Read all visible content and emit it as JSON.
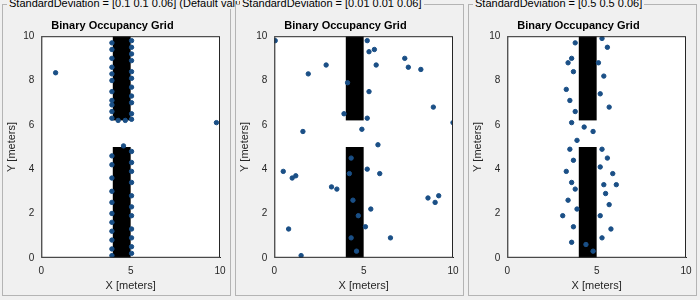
{
  "chart_data": [
    {
      "type": "scatter",
      "panel_title": "StandardDeviation = [0.1 0.1 0.06] (Default valu",
      "title": "Binary Occupancy Grid",
      "x_label": "X [meters]",
      "y_label": "Y [meters]",
      "xlim": [
        0,
        10
      ],
      "ylim": [
        0,
        10
      ],
      "xticks": [
        0,
        5,
        10
      ],
      "yticks": [
        0,
        2,
        4,
        6,
        8,
        10
      ],
      "grid": false,
      "color": "#1a4f86",
      "obstacles": [
        {
          "x": [
            4,
            5
          ],
          "y": [
            0,
            5
          ]
        },
        {
          "x": [
            4,
            5
          ],
          "y": [
            6.2,
            10
          ]
        }
      ],
      "x": [
        0.8,
        9.8,
        3.95,
        3.95,
        3.95,
        3.95,
        3.95,
        3.95,
        3.95,
        3.95,
        3.95,
        3.95,
        3.95,
        5.05,
        5.05,
        5.05,
        5.05,
        5.05,
        5.05,
        5.05,
        5.05,
        5.05,
        5.05,
        5.05,
        4.3,
        4.7,
        3.95,
        3.95,
        3.95,
        3.95,
        3.95,
        3.95,
        3.95,
        3.95,
        3.95,
        3.95,
        3.95,
        5.05,
        5.05,
        5.05,
        5.05,
        5.05,
        5.05,
        5.05,
        5.05,
        5.05,
        5.05,
        5.05,
        4.6
      ],
      "y": [
        8.35,
        6.1,
        9.7,
        9.4,
        9.0,
        8.6,
        8.3,
        8.0,
        7.5,
        7.1,
        6.9,
        6.6,
        6.3,
        9.8,
        9.5,
        9.2,
        8.9,
        8.4,
        8.1,
        7.7,
        7.3,
        7.0,
        6.5,
        6.25,
        6.2,
        6.2,
        4.6,
        4.2,
        3.6,
        3.0,
        2.5,
        2.0,
        1.6,
        1.2,
        0.8,
        0.4,
        0.1,
        4.8,
        4.3,
        3.9,
        3.4,
        2.8,
        2.3,
        1.9,
        1.3,
        0.9,
        0.5,
        0.2,
        5.05
      ]
    },
    {
      "type": "scatter",
      "panel_title": "StandardDeviation = [0.01 0.01 0.06]",
      "title": "Binary Occupancy Grid",
      "x_label": "X [meters]",
      "y_label": "Y [meters]",
      "xlim": [
        0,
        10
      ],
      "ylim": [
        0,
        10
      ],
      "xticks": [
        0,
        5,
        10
      ],
      "yticks": [
        0,
        2,
        4,
        6,
        8,
        10
      ],
      "grid": false,
      "color": "#1a4f86",
      "obstacles": [
        {
          "x": [
            4,
            5
          ],
          "y": [
            0,
            5
          ]
        },
        {
          "x": [
            4,
            5
          ],
          "y": [
            6.2,
            10
          ]
        }
      ],
      "x": [
        0.05,
        0.5,
        0.8,
        1.0,
        1.2,
        1.5,
        1.6,
        1.9,
        2.9,
        3.2,
        3.5,
        3.9,
        5.2,
        5.3,
        5.6,
        5.7,
        5.3,
        5.2,
        4.9,
        4.3,
        4.2,
        4.4,
        4.7,
        5.4,
        5.1,
        4.3,
        5.2,
        5.9,
        5.8,
        6.5,
        7.3,
        7.5,
        8.2,
        8.6,
        8.9,
        9.0,
        9.2,
        10.0,
        4.6,
        4.1
      ],
      "y": [
        9.8,
        3.9,
        1.3,
        3.6,
        3.7,
        0.1,
        5.7,
        8.3,
        8.7,
        3.2,
        3.1,
        6.5,
        9.8,
        9.3,
        9.4,
        8.7,
        7.5,
        6.3,
        5.8,
        4.5,
        3.8,
        2.6,
        1.9,
        2.2,
        1.4,
        0.9,
        4.0,
        3.8,
        5.1,
        0.9,
        9.0,
        8.6,
        8.5,
        2.7,
        6.8,
        2.5,
        2.8,
        6.1,
        0.3,
        7.9
      ]
    },
    {
      "type": "scatter",
      "panel_title": "StandardDeviation = [0.5 0.5 0.06]",
      "title": "Binary Occupancy Grid",
      "x_label": "X [meters]",
      "y_label": "Y [meters]",
      "xlim": [
        0,
        10
      ],
      "ylim": [
        0,
        10
      ],
      "xticks": [
        0,
        5,
        10
      ],
      "yticks": [
        0,
        2,
        4,
        6,
        8,
        10
      ],
      "grid": false,
      "color": "#1a4f86",
      "obstacles": [
        {
          "x": [
            4,
            5
          ],
          "y": [
            0,
            5
          ]
        },
        {
          "x": [
            4,
            5
          ],
          "y": [
            6.2,
            10
          ]
        }
      ],
      "x": [
        3.8,
        3.6,
        3.4,
        3.7,
        3.3,
        3.5,
        3.8,
        3.6,
        5.3,
        5.6,
        5.1,
        5.4,
        5.2,
        5.7,
        4.3,
        4.8,
        3.9,
        3.5,
        3.7,
        3.3,
        3.6,
        3.8,
        3.4,
        3.9,
        3.1,
        3.7,
        5.3,
        5.6,
        5.2,
        5.9,
        5.4,
        6.1,
        5.5,
        5.7,
        5.2,
        5.8,
        5.3,
        4.4,
        4.8,
        3.6
      ],
      "y": [
        9.7,
        9.0,
        8.8,
        8.4,
        7.6,
        7.1,
        6.6,
        6.1,
        9.9,
        9.5,
        8.8,
        8.2,
        7.4,
        6.8,
        5.9,
        5.7,
        5.3,
        4.9,
        4.4,
        3.9,
        3.4,
        3.1,
        2.6,
        2.2,
        1.9,
        1.4,
        4.9,
        4.5,
        4.1,
        3.8,
        3.3,
        3.3,
        2.9,
        2.4,
        1.9,
        1.3,
        0.9,
        0.6,
        0.3,
        0.7
      ]
    }
  ]
}
